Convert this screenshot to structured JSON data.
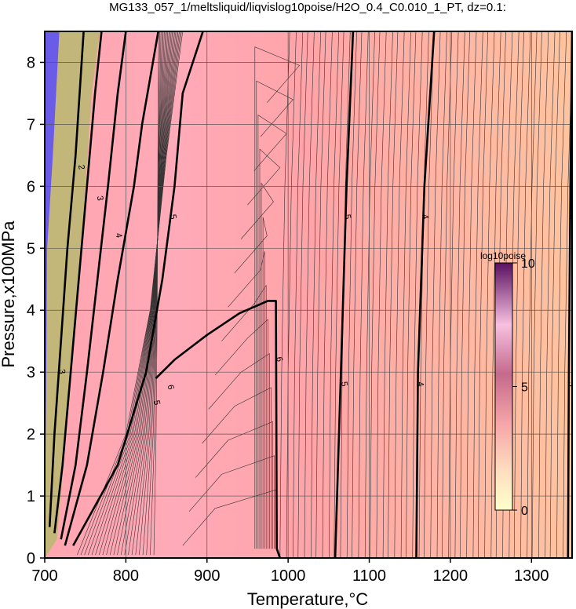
{
  "chart_data": {
    "type": "heatmap",
    "title": "MG133_057_1/meltsliquid/liqvislog10poise/H2O_0.4_C0.010_1_PT, dz=0.1:",
    "xlabel": "Temperature,°C",
    "ylabel": "Pressure,x100MPa",
    "xlim": [
      700,
      1350
    ],
    "ylim": [
      0,
      8.5
    ],
    "x_ticks": [
      700,
      800,
      900,
      1000,
      1100,
      1200,
      1300
    ],
    "y_ticks": [
      0,
      1,
      2,
      3,
      4,
      5,
      6,
      7,
      8
    ],
    "grid": true,
    "colorbar": {
      "label": "log10poise",
      "range": [
        0,
        10
      ],
      "ticks": [
        0,
        5,
        10
      ],
      "colors": [
        "#ffffcc",
        "#f7c7c9",
        "#d98aa8",
        "#9a3f72",
        "#4a1050"
      ]
    },
    "background_colors": {
      "left_band": "#6b5ce8",
      "olive_band": "#b8b870",
      "pink_region": "#ffa5b0",
      "orange_region": "#ffbf9e"
    },
    "major_contours": [
      {
        "level": 6,
        "label": "6",
        "points": [
          [
            837,
            2.9
          ],
          [
            860,
            3.2
          ],
          [
            900,
            3.6
          ],
          [
            940,
            3.95
          ],
          [
            975,
            4.15
          ],
          [
            985,
            4.15
          ],
          [
            986,
            0.15
          ],
          [
            990,
            0
          ]
        ]
      },
      {
        "level": 5,
        "label": "5",
        "points": [
          [
            735,
            0.2
          ],
          [
            790,
            1.5
          ],
          [
            825,
            3.0
          ],
          [
            845,
            4.5
          ],
          [
            860,
            6.0
          ],
          [
            870,
            7.5
          ],
          [
            895,
            8.5
          ]
        ]
      },
      {
        "level": 5,
        "label": "5",
        "points": [
          [
            1058,
            0
          ],
          [
            1065,
            3.0
          ],
          [
            1072,
            6.0
          ],
          [
            1080,
            8.5
          ]
        ]
      },
      {
        "level": 4,
        "label": "4",
        "points": [
          [
            1158,
            0
          ],
          [
            1160,
            3.0
          ],
          [
            1168,
            6.0
          ],
          [
            1180,
            8.5
          ]
        ]
      },
      {
        "level": 3,
        "label": "3",
        "points": [
          [
            1345,
            0
          ],
          [
            1346,
            3.0
          ],
          [
            1348,
            6.0
          ],
          [
            1350,
            8.5
          ]
        ]
      },
      {
        "level": 4,
        "label": "4",
        "points": [
          [
            725,
            0.2
          ],
          [
            752,
            1.5
          ],
          [
            772,
            3.0
          ],
          [
            790,
            4.5
          ],
          [
            810,
            6.0
          ],
          [
            820,
            7.0
          ],
          [
            840,
            8.5
          ]
        ]
      },
      {
        "level": 3,
        "label": "3",
        "points": [
          [
            720,
            0.3
          ],
          [
            738,
            1.5
          ],
          [
            752,
            3.0
          ],
          [
            765,
            4.5
          ],
          [
            778,
            6.0
          ],
          [
            790,
            7.5
          ],
          [
            800,
            8.5
          ]
        ]
      },
      {
        "level": 2,
        "label": "2",
        "points": [
          [
            712,
            0.4
          ],
          [
            722,
            1.5
          ],
          [
            732,
            3.0
          ],
          [
            742,
            4.5
          ],
          [
            752,
            6.0
          ],
          [
            762,
            7.5
          ],
          [
            770,
            8.5
          ]
        ]
      },
      {
        "level": 1,
        "label": "1",
        "points": [
          [
            706,
            0.5
          ],
          [
            712,
            2.0
          ],
          [
            720,
            3.5
          ],
          [
            728,
            5.0
          ],
          [
            738,
            6.5
          ],
          [
            748,
            8.5
          ]
        ]
      }
    ],
    "contour_labels": [
      {
        "text": "6",
        "x": 852,
        "y": 2.75
      },
      {
        "text": "6",
        "x": 986,
        "y": 3.2
      },
      {
        "text": "5",
        "x": 835,
        "y": 2.5
      },
      {
        "text": "5",
        "x": 855,
        "y": 5.5
      },
      {
        "text": "5",
        "x": 1066,
        "y": 2.8
      },
      {
        "text": "5",
        "x": 1070,
        "y": 5.5
      },
      {
        "text": "4",
        "x": 1160,
        "y": 2.8
      },
      {
        "text": "4",
        "x": 1166,
        "y": 5.5
      },
      {
        "text": "3",
        "x": 1346,
        "y": 2.8
      },
      {
        "text": "3",
        "x": 1348,
        "y": 5.5
      },
      {
        "text": "4",
        "x": 788,
        "y": 5.2
      },
      {
        "text": "3",
        "x": 765,
        "y": 5.8
      },
      {
        "text": "2",
        "x": 742,
        "y": 6.3
      },
      {
        "text": "3",
        "x": 718,
        "y": 3.0
      }
    ]
  }
}
